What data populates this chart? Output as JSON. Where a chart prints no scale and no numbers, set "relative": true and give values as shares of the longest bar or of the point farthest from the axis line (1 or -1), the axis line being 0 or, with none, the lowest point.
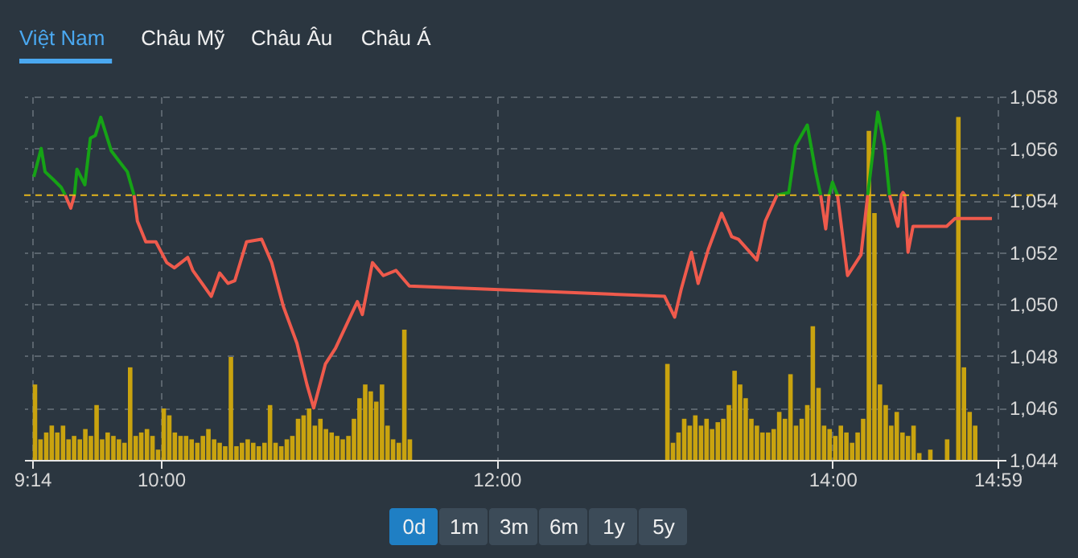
{
  "chart_data": [
    {
      "type": "line",
      "xlim": [
        9.2333,
        14.9833
      ],
      "ylim": [
        1044,
        1058
      ],
      "xticks": [
        {
          "value": 9.2333,
          "label": "9:14"
        },
        {
          "value": 10,
          "label": "10:00"
        },
        {
          "value": 12,
          "label": "12:00"
        },
        {
          "value": 14,
          "label": "14:00"
        },
        {
          "value": 14.9833,
          "label": "14:59"
        }
      ],
      "yticks": [
        {
          "value": 1044,
          "label": "1,044"
        },
        {
          "value": 1046,
          "label": "1,046"
        },
        {
          "value": 1048,
          "label": "1,048"
        },
        {
          "value": 1050,
          "label": "1,050"
        },
        {
          "value": 1052,
          "label": "1,052"
        },
        {
          "value": 1054,
          "label": "1,054"
        },
        {
          "value": 1056,
          "label": "1,056"
        },
        {
          "value": 1058,
          "label": "1,058"
        }
      ],
      "grid": true,
      "x": [
        9.243,
        9.287,
        9.31,
        9.359,
        9.406,
        9.43,
        9.463,
        9.485,
        9.5,
        9.547,
        9.58,
        9.61,
        9.642,
        9.705,
        9.752,
        9.8,
        9.84,
        9.86,
        9.91,
        9.97,
        10.035,
        10.08,
        10.16,
        10.19,
        10.3,
        10.35,
        10.4,
        10.44,
        10.51,
        10.6,
        10.66,
        10.73,
        10.81,
        10.87,
        10.91,
        10.98,
        11.04,
        11.17,
        11.2,
        11.26,
        11.325,
        11.4,
        11.48,
        13.0,
        13.06,
        13.1,
        13.16,
        13.2,
        13.26,
        13.34,
        13.4,
        13.44,
        13.55,
        13.6,
        13.67,
        13.74,
        13.78,
        13.85,
        13.9,
        13.93,
        13.96,
        13.98,
        14.0,
        14.03,
        14.09,
        14.17,
        14.21,
        14.27,
        14.31,
        14.34,
        14.39,
        14.41,
        14.42,
        14.43,
        14.45,
        14.48,
        14.68,
        14.73,
        14.95
      ],
      "series": [
        {
          "color": "#16a316",
          "values": [
            1054.9,
            1056.0,
            1055.1,
            1054.8,
            1054.5,
            1054.2,
            null,
            1054.2,
            1055.2,
            1054.6,
            1056.4,
            1056.5,
            1057.2,
            1055.9,
            1055.5,
            1055.1,
            1054.2,
            null,
            null,
            null,
            null,
            null,
            null,
            null,
            null,
            null,
            null,
            null,
            null,
            null,
            null,
            null,
            null,
            null,
            null,
            null,
            null,
            null,
            null,
            null,
            null,
            null,
            null,
            null,
            null,
            null,
            null,
            null,
            null,
            null,
            null,
            null,
            null,
            null,
            1054.2,
            1054.3,
            1056.1,
            1056.9,
            1055.1,
            1054.2,
            null,
            1054.2,
            1054.7,
            1054.2,
            null,
            null,
            1054.2,
            1057.4,
            1056.1,
            1054.2,
            null,
            null,
            null,
            null,
            null,
            null,
            null,
            null,
            null
          ]
        },
        {
          "color": "#ef5a4c",
          "values": [
            null,
            null,
            null,
            null,
            null,
            1054.2,
            1053.7,
            1054.2,
            null,
            null,
            null,
            null,
            null,
            null,
            null,
            null,
            1054.2,
            1053.2,
            1052.4,
            1052.4,
            1051.6,
            1051.4,
            1051.8,
            1051.3,
            1050.3,
            1051.2,
            1050.8,
            1050.9,
            1052.4,
            1052.5,
            1051.6,
            1049.9,
            1048.5,
            1046.9,
            1046.0,
            1047.7,
            1048.3,
            1050.1,
            1049.6,
            1051.6,
            1051.1,
            1051.3,
            1050.7,
            1050.3,
            1049.5,
            1050.6,
            1052.0,
            1050.8,
            1052.1,
            1053.5,
            1052.6,
            1052.5,
            1051.7,
            1053.2,
            1054.2,
            null,
            null,
            null,
            null,
            1054.2,
            1052.9,
            1054.2,
            null,
            1054.2,
            1051.1,
            1051.9,
            1054.2,
            null,
            null,
            1054.2,
            1053.0,
            1054.2,
            1054.3,
            1054.2,
            1052.0,
            1053.0,
            1053.0,
            1053.3,
            1053.3
          ]
        }
      ],
      "ref_lines": [
        {
          "axis": "y",
          "value": 1054.2,
          "color": "#e3b51c",
          "line_style": "dashed"
        }
      ],
      "annotations": [
        "Việt Nam",
        "Châu Mỹ",
        "Châu Âu",
        "Châu Á",
        "0d",
        "1m",
        "3m",
        "6m",
        "1y",
        "5y"
      ]
    },
    {
      "type": "bar",
      "relative": true,
      "xlim": [
        9.2333,
        14.9833
      ],
      "color": "#c9a30f",
      "x": [
        9.25,
        9.283,
        9.317,
        9.35,
        9.383,
        9.417,
        9.45,
        9.483,
        9.517,
        9.55,
        9.583,
        9.617,
        9.65,
        9.683,
        9.717,
        9.75,
        9.783,
        9.817,
        9.85,
        9.883,
        9.917,
        9.95,
        9.983,
        10.017,
        10.05,
        10.083,
        10.117,
        10.15,
        10.183,
        10.217,
        10.25,
        10.283,
        10.317,
        10.35,
        10.383,
        10.417,
        10.45,
        10.483,
        10.517,
        10.55,
        10.583,
        10.617,
        10.65,
        10.683,
        10.717,
        10.75,
        10.783,
        10.817,
        10.85,
        10.883,
        10.917,
        10.95,
        10.983,
        11.017,
        11.05,
        11.083,
        11.117,
        11.15,
        11.183,
        11.217,
        11.25,
        11.283,
        11.317,
        11.35,
        11.383,
        11.417,
        11.45,
        11.483,
        13.017,
        13.05,
        13.083,
        13.117,
        13.15,
        13.183,
        13.217,
        13.25,
        13.283,
        13.317,
        13.35,
        13.383,
        13.417,
        13.45,
        13.483,
        13.517,
        13.55,
        13.583,
        13.617,
        13.65,
        13.683,
        13.717,
        13.75,
        13.783,
        13.817,
        13.85,
        13.883,
        13.917,
        13.95,
        13.983,
        14.017,
        14.05,
        14.083,
        14.117,
        14.15,
        14.183,
        14.217,
        14.25,
        14.283,
        14.317,
        14.35,
        14.383,
        14.417,
        14.45,
        14.483,
        14.517,
        14.583,
        14.683,
        14.75,
        14.783,
        14.817,
        14.85
      ],
      "values": [
        0.22,
        0.06,
        0.08,
        0.1,
        0.08,
        0.1,
        0.06,
        0.07,
        0.06,
        0.09,
        0.07,
        0.16,
        0.06,
        0.08,
        0.07,
        0.06,
        0.05,
        0.27,
        0.07,
        0.08,
        0.09,
        0.07,
        0.03,
        0.15,
        0.13,
        0.08,
        0.07,
        0.07,
        0.06,
        0.05,
        0.07,
        0.09,
        0.06,
        0.05,
        0.04,
        0.3,
        0.04,
        0.05,
        0.06,
        0.05,
        0.04,
        0.05,
        0.16,
        0.05,
        0.04,
        0.06,
        0.07,
        0.12,
        0.13,
        0.15,
        0.1,
        0.12,
        0.09,
        0.08,
        0.07,
        0.06,
        0.07,
        0.12,
        0.18,
        0.22,
        0.2,
        0.17,
        0.22,
        0.1,
        0.06,
        0.05,
        0.38,
        0.06,
        0.28,
        0.05,
        0.08,
        0.12,
        0.1,
        0.13,
        0.1,
        0.12,
        0.09,
        0.11,
        0.12,
        0.16,
        0.26,
        0.22,
        0.18,
        0.12,
        0.1,
        0.08,
        0.08,
        0.09,
        0.14,
        0.12,
        0.25,
        0.1,
        0.12,
        0.16,
        0.39,
        0.21,
        0.1,
        0.09,
        0.07,
        0.1,
        0.08,
        0.05,
        0.08,
        0.12,
        0.96,
        0.72,
        0.22,
        0.16,
        0.1,
        0.14,
        0.08,
        0.07,
        0.1,
        0.02,
        0.03,
        0.06,
        1.0,
        0.27,
        0.14,
        0.1
      ]
    }
  ]
}
